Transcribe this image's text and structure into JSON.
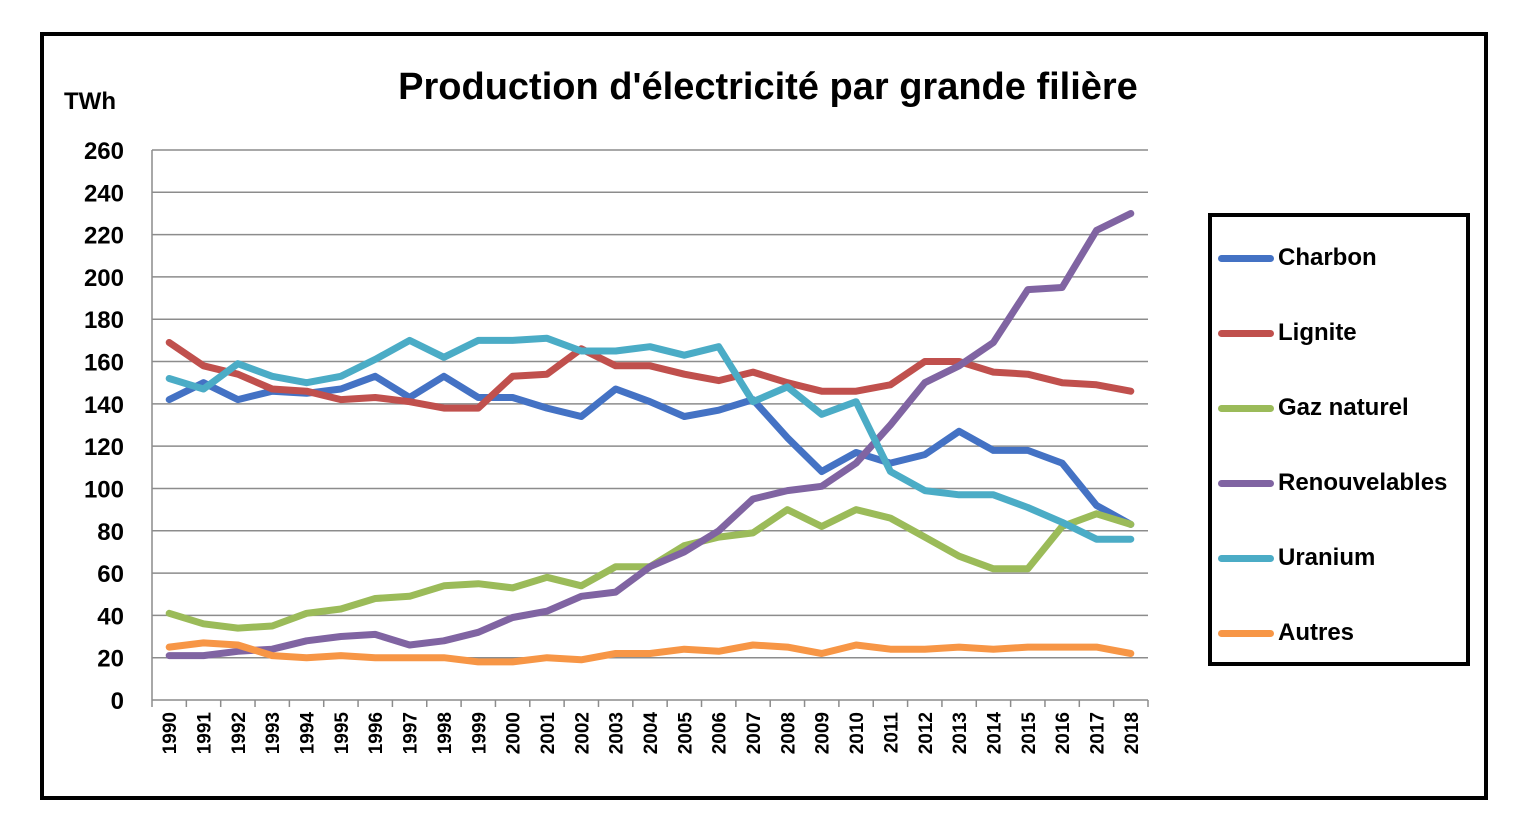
{
  "chart_data": {
    "type": "line",
    "title": "Production d'électricité par grande filière",
    "ylabel": "TWh",
    "xlabel": "",
    "ylim": [
      0,
      260
    ],
    "yticks": [
      0,
      20,
      40,
      60,
      80,
      100,
      120,
      140,
      160,
      180,
      200,
      220,
      240,
      260
    ],
    "grid": true,
    "legend_position": "right",
    "x": [
      "1990",
      "1991",
      "1992",
      "1993",
      "1994",
      "1995",
      "1996",
      "1997",
      "1998",
      "1999",
      "2000",
      "2001",
      "2002",
      "2003",
      "2004",
      "2005",
      "2006",
      "2007",
      "2008",
      "2009",
      "2010",
      "2011",
      "2012",
      "2013",
      "2014",
      "2015",
      "2016",
      "2017",
      "2018"
    ],
    "series": [
      {
        "name": "Charbon",
        "color": "#4472C4",
        "values": [
          142,
          150,
          142,
          146,
          145,
          147,
          153,
          143,
          153,
          143,
          143,
          138,
          134,
          147,
          141,
          134,
          137,
          142,
          124,
          108,
          117,
          112,
          116,
          127,
          118,
          118,
          112,
          92,
          83
        ]
      },
      {
        "name": "Lignite",
        "color": "#C0504D",
        "values": [
          169,
          158,
          154,
          147,
          146,
          142,
          143,
          141,
          138,
          138,
          153,
          154,
          166,
          158,
          158,
          154,
          151,
          155,
          150,
          146,
          146,
          149,
          160,
          160,
          155,
          154,
          150,
          149,
          146
        ]
      },
      {
        "name": "Gaz naturel",
        "color": "#9BBB59",
        "values": [
          41,
          36,
          34,
          35,
          41,
          43,
          48,
          49,
          54,
          55,
          53,
          58,
          54,
          63,
          63,
          73,
          77,
          79,
          90,
          82,
          90,
          86,
          77,
          68,
          62,
          62,
          82,
          88,
          83
        ]
      },
      {
        "name": "Renouvelables",
        "color": "#8064A2",
        "values": [
          21,
          21,
          23,
          24,
          28,
          30,
          31,
          26,
          28,
          32,
          39,
          42,
          49,
          51,
          63,
          70,
          80,
          95,
          99,
          101,
          112,
          130,
          150,
          158,
          169,
          194,
          195,
          222,
          230
        ]
      },
      {
        "name": "Uranium",
        "color": "#4BACC6",
        "values": [
          152,
          147,
          159,
          153,
          150,
          153,
          161,
          170,
          162,
          170,
          170,
          171,
          165,
          165,
          167,
          163,
          167,
          141,
          148,
          135,
          141,
          108,
          99,
          97,
          97,
          91,
          84,
          76,
          76
        ]
      },
      {
        "name": "Autres",
        "color": "#F79646",
        "values": [
          25,
          27,
          26,
          21,
          20,
          21,
          20,
          20,
          20,
          18,
          18,
          20,
          19,
          22,
          22,
          24,
          23,
          26,
          25,
          22,
          26,
          24,
          24,
          25,
          24,
          25,
          25,
          25,
          22
        ]
      }
    ]
  }
}
